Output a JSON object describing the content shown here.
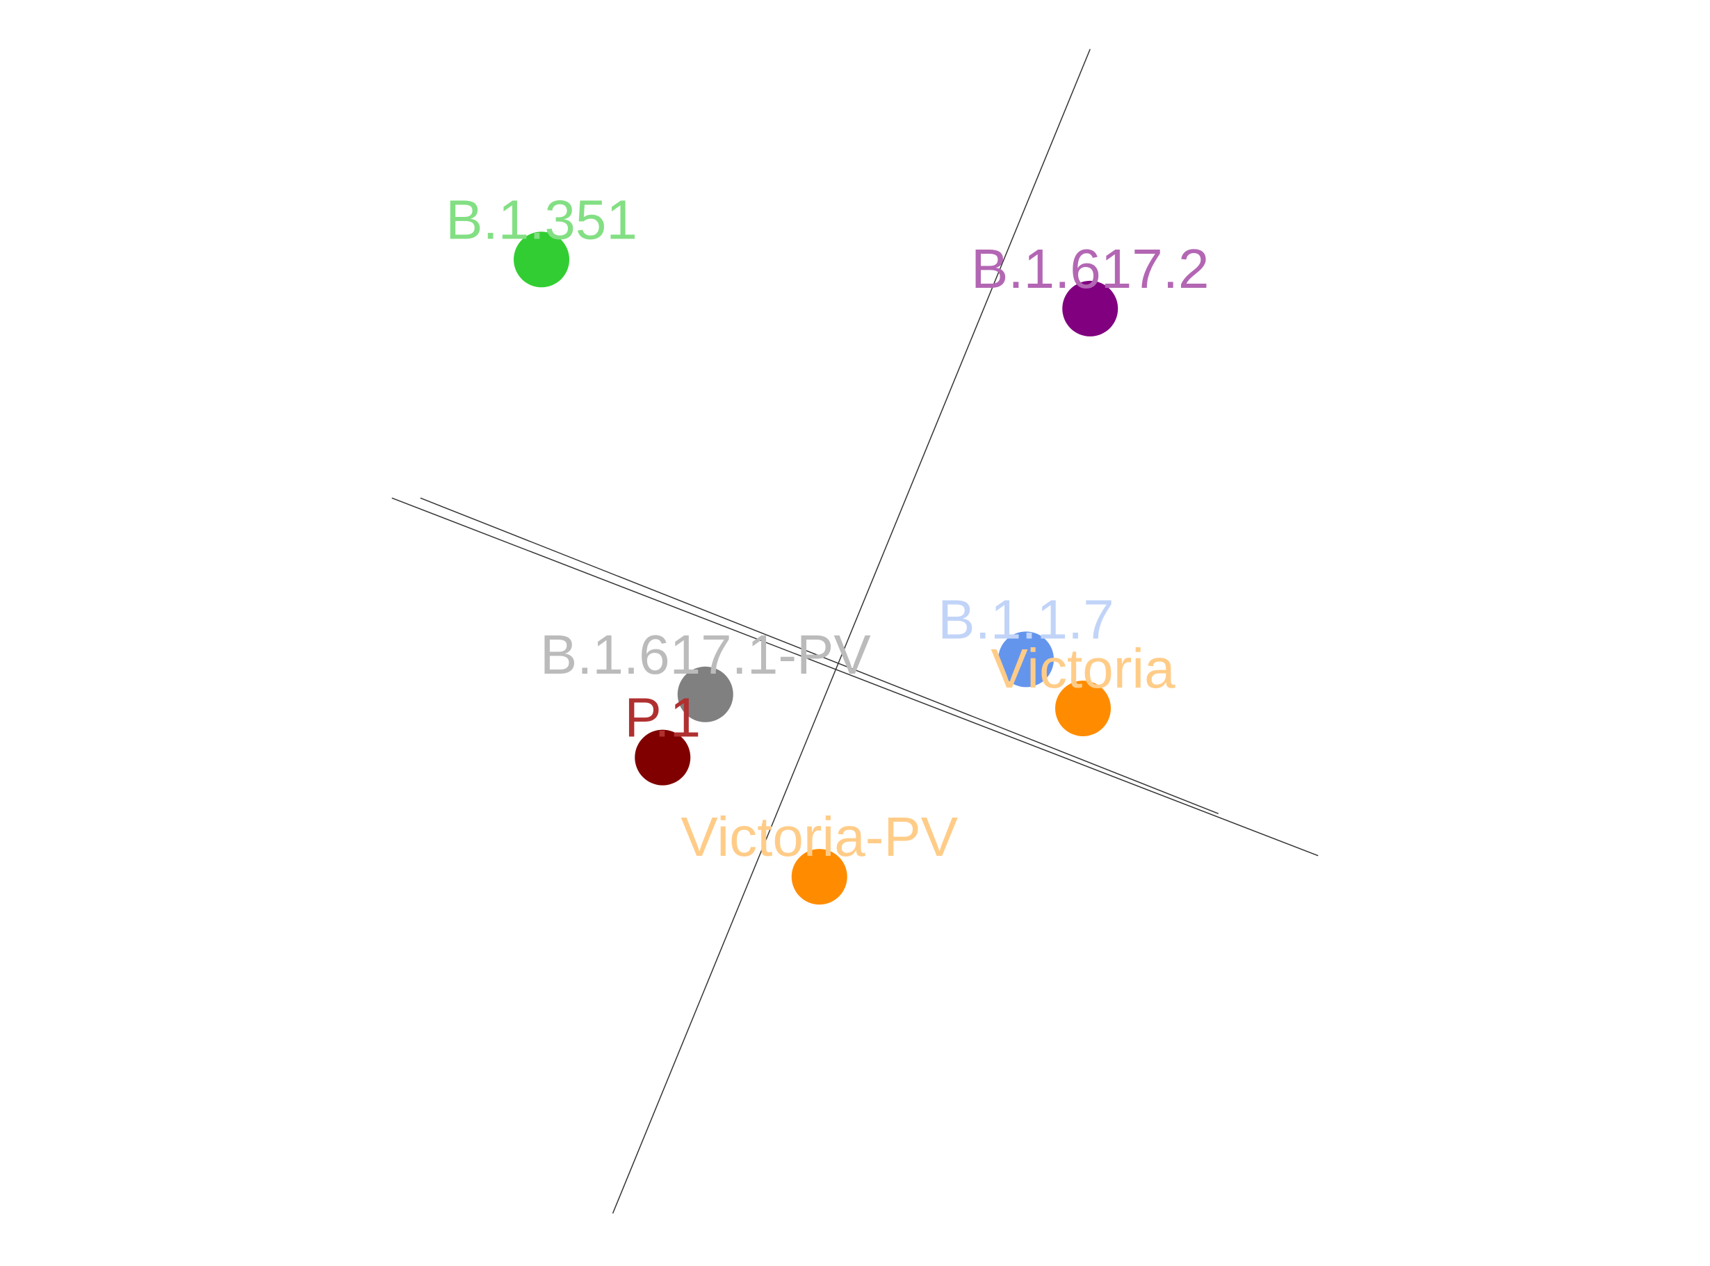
{
  "chart_data": {
    "type": "scatter",
    "title": "",
    "xlabel": "",
    "ylabel": "",
    "grid": false,
    "legend": "none",
    "xlim": [
      -12,
      12
    ],
    "ylim": [
      -9,
      9
    ],
    "axes": [
      {
        "name": "axis-1",
        "from": [
          -6.5,
          1.9
        ],
        "to": [
          6.5,
          -3.2
        ]
      },
      {
        "name": "axis-2",
        "from": [
          -6.1,
          1.9
        ],
        "to": [
          5.1,
          -2.6
        ]
      },
      {
        "name": "axis-3",
        "from": [
          3.3,
          8.3
        ],
        "to": [
          -3.4,
          -8.3
        ]
      }
    ],
    "points": [
      {
        "label": "B.1.351",
        "x": -4.4,
        "y": 5.3,
        "color": "#32cd32",
        "label_color": "#83df83"
      },
      {
        "label": "B.1.617.2",
        "x": 3.3,
        "y": 4.6,
        "color": "#800080",
        "label_color": "#b366b3"
      },
      {
        "label": "B.1.1.7",
        "x": 2.4,
        "y": -0.4,
        "color": "#6495ed",
        "label_color": "#c1d4f8"
      },
      {
        "label": "Victoria",
        "x": 3.2,
        "y": -1.1,
        "color": "#ff8c00",
        "label_color": "#ffcc88"
      },
      {
        "label": "B.1.617.1-PV",
        "x": -2.1,
        "y": -0.9,
        "color": "#808080",
        "label_color": "#bbbbbb"
      },
      {
        "label": "P.1",
        "x": -2.7,
        "y": -1.8,
        "color": "#800000",
        "label_color": "#b03030"
      },
      {
        "label": "Victoria-PV",
        "x": -0.5,
        "y": -3.5,
        "color": "#ff8c00",
        "label_color": "#ffcc88"
      }
    ]
  }
}
